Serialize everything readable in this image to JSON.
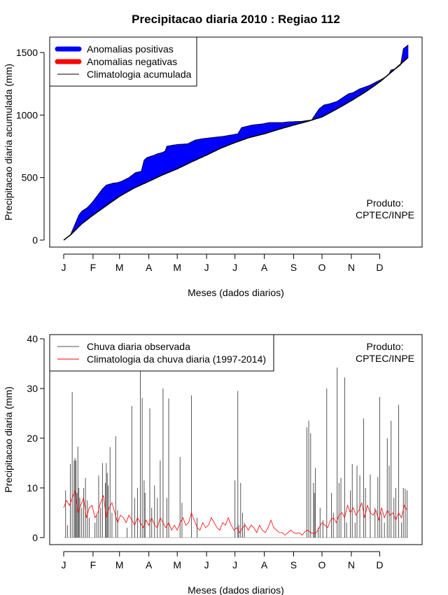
{
  "chart_data": [
    {
      "type": "area",
      "title": "Precipitacao diaria 2010 : Regiao 112",
      "xlabel": "Meses (dados diarios)",
      "ylabel": "Precipitacao diaria acumulada (mm)",
      "xlim": [
        1,
        365
      ],
      "ylim": [
        0,
        1560
      ],
      "x_ticks": [
        1,
        32,
        60,
        91,
        121,
        152,
        182,
        213,
        244,
        274,
        305,
        335
      ],
      "x_tick_labels": [
        "J",
        "F",
        "M",
        "A",
        "M",
        "J",
        "J",
        "A",
        "S",
        "O",
        "N",
        "D"
      ],
      "y_ticks": [
        0,
        500,
        1000,
        1500
      ],
      "y_tick_labels": [
        "0",
        "500",
        "1000",
        "1500"
      ],
      "legend_position": "top-left",
      "legend": [
        {
          "label": "Anomalias positivas",
          "color": "#0000ff",
          "style": "thick"
        },
        {
          "label": "Anomalias negativas",
          "color": "#ff0000",
          "style": "thick"
        },
        {
          "label": "Climatologia acumulada",
          "color": "#000000",
          "style": "line"
        }
      ],
      "annotation": [
        "Produto:",
        "CPTEC/INPE"
      ],
      "observed_cumulative": {
        "x": [
          1,
          8,
          12,
          17,
          20,
          26,
          31,
          38,
          42,
          46,
          53,
          58,
          62,
          70,
          77,
          83,
          86,
          89,
          97,
          100,
          105,
          108,
          110,
          117,
          122,
          132,
          140,
          147,
          158,
          170,
          185,
          189,
          200,
          212,
          218,
          232,
          238,
          253,
          257,
          263,
          271,
          276,
          282,
          290,
          298,
          302,
          307,
          314,
          318,
          325,
          330,
          338,
          344,
          347,
          352,
          357,
          360,
          365
        ],
        "y": [
          0,
          40,
          110,
          200,
          230,
          260,
          300,
          370,
          410,
          440,
          455,
          460,
          470,
          500,
          540,
          550,
          640,
          660,
          680,
          690,
          700,
          710,
          750,
          760,
          765,
          770,
          800,
          810,
          820,
          830,
          850,
          900,
          920,
          930,
          940,
          940,
          945,
          950,
          955,
          960,
          1050,
          1080,
          1090,
          1110,
          1150,
          1170,
          1180,
          1210,
          1220,
          1240,
          1260,
          1290,
          1320,
          1360,
          1370,
          1400,
          1530,
          1560
        ]
      },
      "climatology_cumulative": {
        "x": [
          1,
          8,
          20,
          32,
          45,
          60,
          75,
          91,
          105,
          121,
          136,
          152,
          167,
          182,
          197,
          213,
          228,
          244,
          259,
          274,
          290,
          305,
          320,
          335,
          350,
          365
        ],
        "y": [
          0,
          40,
          130,
          200,
          270,
          350,
          415,
          470,
          520,
          570,
          625,
          680,
          735,
          780,
          820,
          850,
          885,
          920,
          950,
          985,
          1050,
          1115,
          1185,
          1265,
          1360,
          1460
        ]
      }
    },
    {
      "type": "bar",
      "title": "",
      "xlabel": "Meses (dados diarios)",
      "ylabel": "Precipitacao diaria (mm)",
      "xlim": [
        1,
        365
      ],
      "ylim": [
        0,
        40
      ],
      "x_ticks": [
        1,
        32,
        60,
        91,
        121,
        152,
        182,
        213,
        244,
        274,
        305,
        335
      ],
      "x_tick_labels": [
        "J",
        "F",
        "M",
        "A",
        "M",
        "J",
        "J",
        "A",
        "S",
        "O",
        "N",
        "D"
      ],
      "y_ticks": [
        0,
        10,
        20,
        30,
        40
      ],
      "y_tick_labels": [
        "0",
        "10",
        "20",
        "30",
        "40"
      ],
      "legend_position": "top-left",
      "legend": [
        {
          "label": "Chuva diaria observada",
          "color": "#555555",
          "style": "line"
        },
        {
          "label": "Climatologia da chuva diaria (1997-2014)",
          "color": "#ff0000",
          "style": "line"
        }
      ],
      "annotation": [
        "Produto:",
        "CPTEC/INPE"
      ],
      "daily_observed_peaks": {
        "day": [
          3,
          5,
          8,
          10,
          12,
          13,
          14,
          15,
          16,
          17,
          18,
          20,
          22,
          24,
          26,
          28,
          34,
          36,
          38,
          40,
          42,
          45,
          46,
          47,
          48,
          50,
          52,
          56,
          58,
          68,
          73,
          76,
          79,
          82,
          84,
          86,
          87,
          92,
          94,
          97,
          100,
          103,
          106,
          110,
          112,
          124,
          126,
          136,
          142,
          182,
          185,
          186,
          188,
          190,
          192,
          258,
          260,
          262,
          265,
          266,
          267,
          270,
          272,
          275,
          279,
          284,
          286,
          290,
          292,
          294,
          298,
          300,
          304,
          306,
          309,
          311,
          314,
          318,
          320,
          325,
          330,
          333,
          335,
          337,
          340,
          343,
          345,
          347,
          350,
          352,
          355,
          358,
          360,
          362,
          364
        ],
        "mm": [
          9.5,
          2.5,
          14.8,
          29.3,
          15.5,
          16.0,
          15.5,
          9.0,
          18.3,
          10.0,
          8.0,
          6.0,
          10.0,
          12.0,
          7.5,
          4.0,
          3.0,
          4.5,
          12.5,
          6.0,
          15.0,
          11.0,
          15.0,
          13.0,
          10.5,
          18.2,
          5.0,
          20.4,
          5.5,
          2.0,
          26.5,
          8.0,
          10.0,
          39.0,
          28.1,
          11.5,
          9.0,
          26.0,
          6.0,
          10.5,
          8.0,
          15.5,
          30.0,
          8.0,
          28.0,
          16.2,
          7.0,
          28.6,
          4.0,
          11.5,
          29.5,
          2.5,
          11.0,
          5.0,
          3.0,
          22.2,
          23.5,
          21.0,
          11.0,
          9.0,
          14.0,
          2.0,
          6.0,
          3.5,
          30.0,
          9.0,
          5.0,
          34.2,
          11.0,
          12.0,
          32.2,
          3.0,
          9.5,
          14.8,
          3.0,
          14.5,
          12.5,
          24.0,
          10.0,
          12.7,
          6.0,
          12.2,
          28.3,
          5.0,
          3.0,
          20.0,
          14.5,
          23.5,
          8.0,
          10.0,
          26.7,
          3.0,
          10.0,
          9.8,
          9.5
        ]
      },
      "climatology_daily": {
        "x": [
          1,
          4,
          7,
          10,
          13,
          16,
          19,
          22,
          25,
          28,
          31,
          34,
          37,
          40,
          43,
          46,
          49,
          52,
          55,
          58,
          61,
          64,
          67,
          70,
          73,
          76,
          79,
          82,
          85,
          88,
          91,
          94,
          97,
          100,
          103,
          106,
          109,
          112,
          115,
          118,
          121,
          124,
          127,
          130,
          133,
          136,
          139,
          142,
          145,
          148,
          151,
          154,
          157,
          160,
          163,
          166,
          169,
          172,
          175,
          178,
          181,
          184,
          187,
          190,
          193,
          196,
          199,
          202,
          205,
          208,
          211,
          214,
          217,
          220,
          223,
          226,
          229,
          232,
          235,
          238,
          241,
          244,
          247,
          250,
          253,
          256,
          259,
          262,
          265,
          268,
          271,
          274,
          277,
          280,
          283,
          286,
          289,
          292,
          295,
          298,
          301,
          304,
          307,
          310,
          313,
          316,
          319,
          322,
          325,
          328,
          331,
          334,
          337,
          340,
          343,
          346,
          349,
          352,
          355,
          358,
          361,
          364
        ],
        "mm": [
          6.0,
          7.5,
          6.5,
          8.0,
          9.5,
          5.0,
          6.5,
          8.0,
          4.0,
          6.0,
          6.5,
          4.0,
          5.0,
          7.0,
          8.5,
          4.0,
          6.0,
          7.0,
          5.0,
          3.0,
          4.5,
          4.0,
          3.0,
          4.5,
          3.5,
          2.5,
          4.0,
          3.0,
          2.0,
          3.5,
          2.5,
          4.0,
          2.5,
          2.0,
          4.0,
          3.0,
          2.0,
          3.0,
          1.5,
          2.5,
          1.5,
          3.0,
          4.0,
          2.5,
          3.0,
          5.0,
          3.5,
          2.0,
          1.5,
          3.0,
          2.0,
          2.5,
          4.0,
          3.0,
          2.0,
          1.5,
          3.0,
          2.5,
          4.0,
          2.5,
          1.5,
          2.0,
          1.0,
          2.0,
          2.5,
          1.5,
          2.5,
          2.0,
          1.0,
          2.5,
          1.5,
          1.0,
          2.0,
          3.5,
          2.0,
          1.5,
          1.0,
          1.0,
          0.5,
          1.0,
          1.5,
          1.0,
          0.8,
          1.0,
          0.5,
          1.2,
          1.5,
          1.0,
          0.8,
          1.0,
          2.0,
          3.0,
          2.5,
          2.0,
          3.5,
          4.0,
          3.0,
          4.5,
          5.0,
          4.0,
          6.5,
          5.0,
          6.0,
          4.5,
          5.5,
          7.0,
          4.0,
          6.5,
          5.0,
          4.5,
          5.5,
          3.5,
          6.0,
          4.0,
          5.5,
          4.5,
          5.0,
          3.5,
          5.0,
          4.0,
          6.5,
          5.5
        ]
      }
    }
  ]
}
